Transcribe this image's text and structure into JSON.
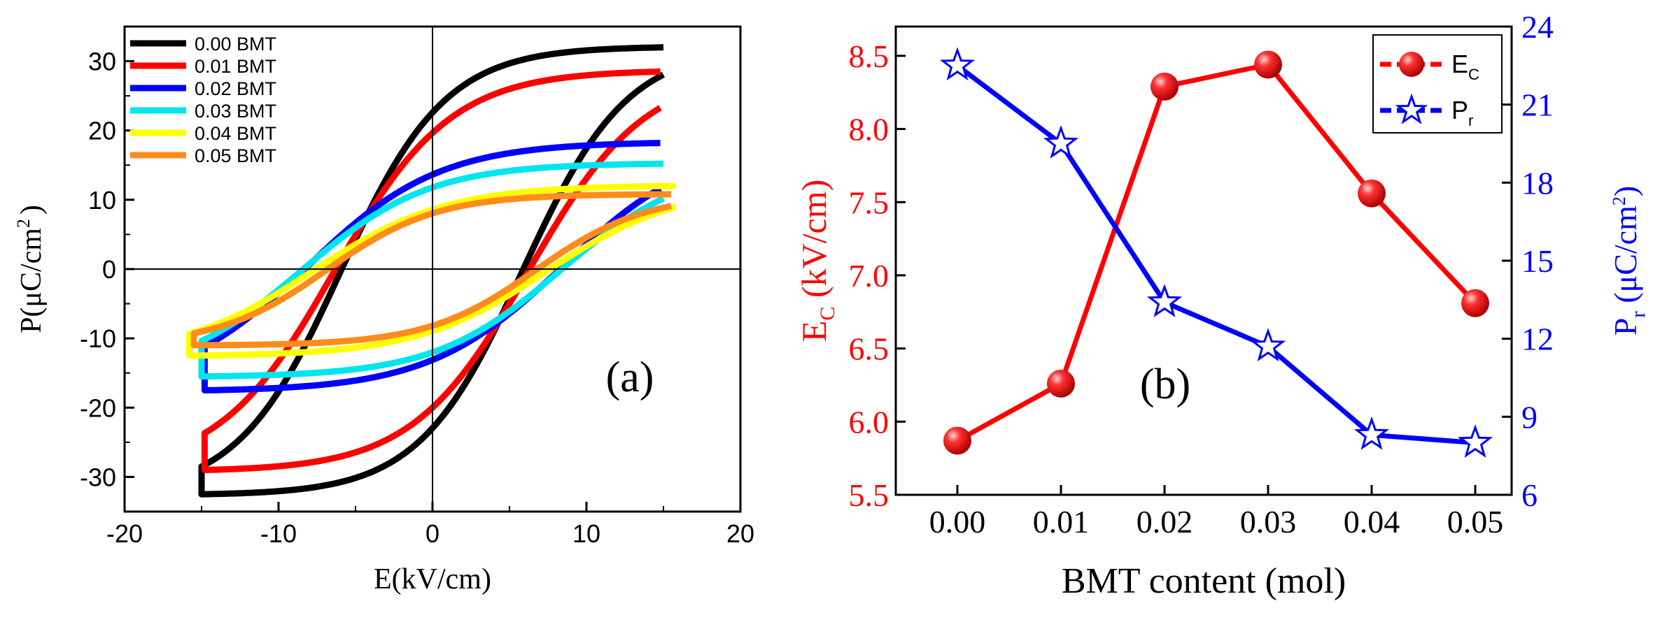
{
  "chart_data": [
    {
      "panel": "(a)",
      "type": "line",
      "xlabel": "E(kV/cm)",
      "ylabel": "P(μC/cm",
      "ylabel_sup": "2",
      "ylabel_end": ")",
      "xlim": [
        -20,
        20
      ],
      "ylim": [
        -35,
        35
      ],
      "x_ticks": [
        -20,
        -10,
        0,
        10,
        20
      ],
      "y_ticks": [
        -30,
        -20,
        -10,
        0,
        10,
        20,
        30
      ],
      "zero_lines": true,
      "legend_placement": "top-left",
      "series": [
        {
          "name": "0.00 BMT",
          "color": "#000000",
          "Emax": 15.0,
          "Pmax": 32.0,
          "Pr": 22.5,
          "Ec": 5.9,
          "Pmin": -32.5
        },
        {
          "name": "0.01 BMT",
          "color": "#ff0000",
          "Emax": 14.8,
          "Pmax": 28.5,
          "Pr": 19.5,
          "Ec": 6.3,
          "Pmin": -29.0
        },
        {
          "name": "0.02 BMT",
          "color": "#0000ff",
          "Emax": 14.8,
          "Pmax": 18.2,
          "Pr": 13.5,
          "Ec": 8.3,
          "Pmin": -17.5
        },
        {
          "name": "0.03 BMT",
          "color": "#00e5ee",
          "Emax": 15.0,
          "Pmax": 15.2,
          "Pr": 11.7,
          "Ec": 8.4,
          "Pmin": -15.5
        },
        {
          "name": "0.04 BMT",
          "color": "#ffff00",
          "Emax": 15.8,
          "Pmax": 12.0,
          "Pr": 8.5,
          "Ec": 7.6,
          "Pmin": -12.5
        },
        {
          "name": "0.05 BMT",
          "color": "#ff8c1a",
          "Emax": 15.5,
          "Pmax": 10.8,
          "Pr": 8.0,
          "Ec": 6.8,
          "Pmin": -11.0
        }
      ]
    },
    {
      "panel": "(b)",
      "type": "line",
      "xlabel": "BMT content (mol)",
      "categories": [
        "0.00",
        "0.01",
        "0.02",
        "0.03",
        "0.04",
        "0.05"
      ],
      "x": [
        0.0,
        0.01,
        0.02,
        0.03,
        0.04,
        0.05
      ],
      "left_axis": {
        "label": "E",
        "label_sub": "C",
        "label_end": " (kV/cm)",
        "color": "#ff0000",
        "ylim": [
          5.5,
          8.7
        ],
        "ticks": [
          "5.5",
          "6.0",
          "6.5",
          "7.0",
          "7.5",
          "8.0",
          "8.5"
        ]
      },
      "right_axis": {
        "label": "P",
        "label_sub": "r",
        "label_end": " (μC/cm",
        "label_sup": "2",
        "label_close": ")",
        "color": "#0000ff",
        "ylim": [
          6,
          24
        ],
        "ticks": [
          "6",
          "9",
          "12",
          "15",
          "18",
          "21",
          "24"
        ]
      },
      "legend_placement": "top-right",
      "series": [
        {
          "name": "E",
          "name_sub": "C",
          "axis": "left",
          "color": "#ff0000",
          "marker": "sphere",
          "values": [
            5.87,
            6.26,
            8.29,
            8.44,
            7.56,
            6.81
          ]
        },
        {
          "name": "P",
          "name_sub": "r",
          "axis": "right",
          "color": "#0000ff",
          "marker": "star",
          "values": [
            22.5,
            19.5,
            13.4,
            11.7,
            8.3,
            8.0
          ]
        }
      ]
    }
  ]
}
